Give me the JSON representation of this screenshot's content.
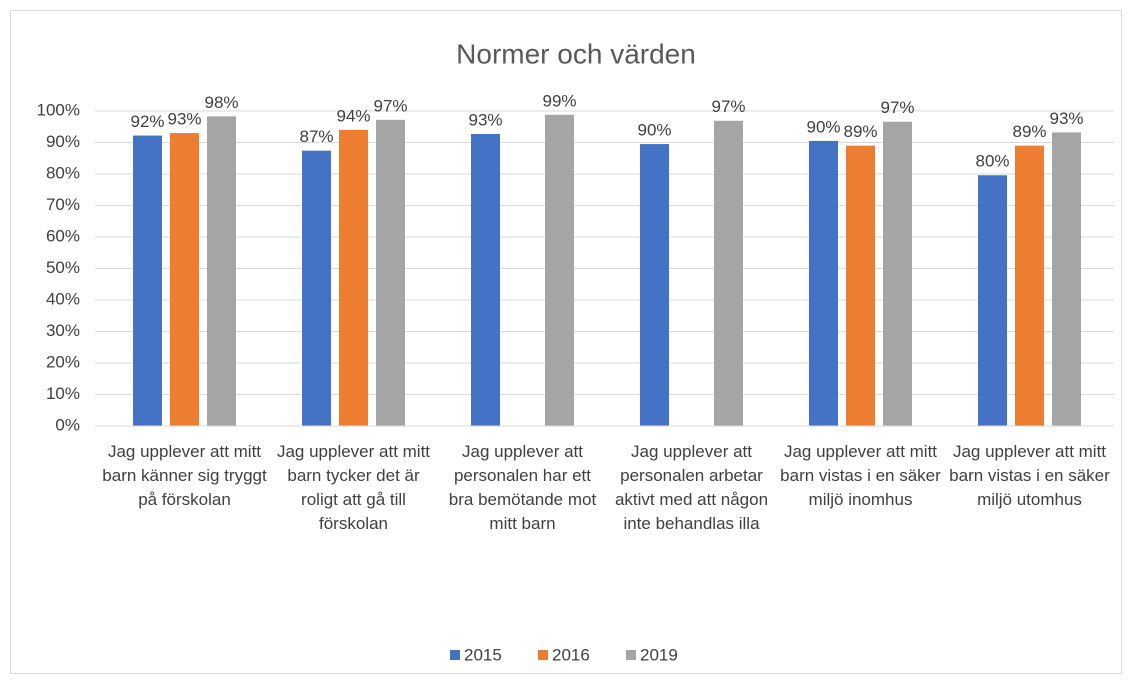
{
  "chart_data": {
    "type": "bar",
    "title": "Normer och värden",
    "categories": [
      "Jag upplever att mitt barn känner sig tryggt på förskolan",
      "Jag upplever att mitt barn tycker det är roligt att gå till förskolan",
      "Jag upplever att personalen har ett bra bemötande mot mitt barn",
      "Jag upplever att personalen arbetar aktivt med att någon inte behandlas illa",
      "Jag upplever att mitt barn vistas i en säker miljö inomhus",
      "Jag upplever att mitt barn vistas i en säker miljö utomhus"
    ],
    "series": [
      {
        "name": "2015",
        "color": "#4472c4",
        "values": [
          92.2,
          87.4,
          92.7,
          89.5,
          90.5,
          79.6
        ],
        "value_labels": [
          "92%",
          "87%",
          "93%",
          "90%",
          "90%",
          "80%"
        ]
      },
      {
        "name": "2016",
        "color": "#ed7d31",
        "values": [
          93.0,
          94.0,
          null,
          null,
          89.0,
          89.0
        ],
        "value_labels": [
          "93%",
          "94%",
          null,
          null,
          "89%",
          "89%"
        ]
      },
      {
        "name": "2019",
        "color": "#a5a5a5",
        "values": [
          98.3,
          97.2,
          98.8,
          96.9,
          96.6,
          93.2
        ],
        "value_labels": [
          "98%",
          "97%",
          "99%",
          "97%",
          "97%",
          "93%"
        ]
      }
    ],
    "ylim": [
      0,
      100
    ],
    "yticks": [
      {
        "value": 0,
        "label": "0%"
      },
      {
        "value": 10,
        "label": "10%"
      },
      {
        "value": 20,
        "label": "20%"
      },
      {
        "value": 30,
        "label": "30%"
      },
      {
        "value": 40,
        "label": "40%"
      },
      {
        "value": 50,
        "label": "50%"
      },
      {
        "value": 60,
        "label": "60%"
      },
      {
        "value": 70,
        "label": "70%"
      },
      {
        "value": 80,
        "label": "80%"
      },
      {
        "value": 90,
        "label": "90%"
      },
      {
        "value": 100,
        "label": "100%"
      }
    ],
    "grid": true,
    "legend": "bottom"
  }
}
